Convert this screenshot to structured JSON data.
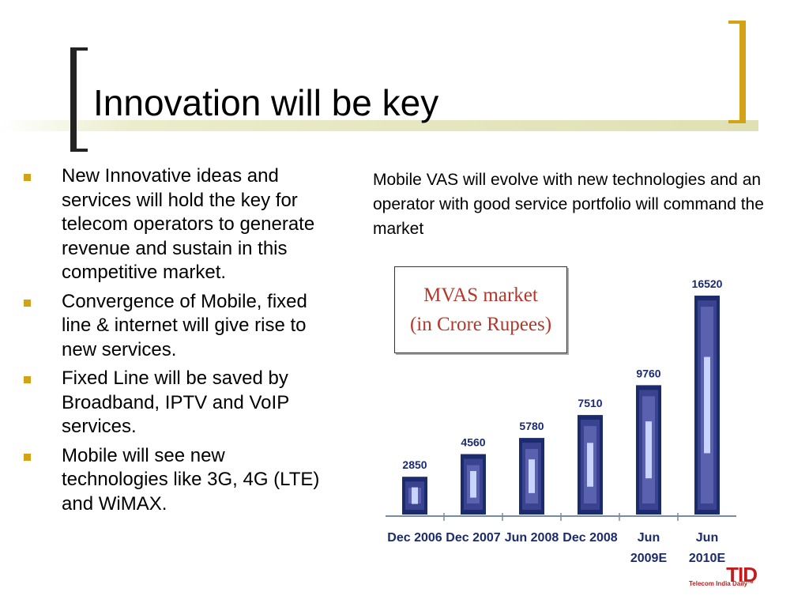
{
  "slide": {
    "title": "Innovation will be key",
    "bullets": [
      "New Innovative ideas and services will hold the key for telecom operators to generate revenue and sustain in this competitive market.",
      "Convergence of Mobile, fixed line & internet will give rise to new services.",
      "Fixed Line will be saved by Broadband, IPTV and VoIP services.",
      "Mobile will see new technologies like 3G, 4G (LTE) and WiMAX."
    ],
    "caption": "Mobile VAS will evolve with new technologies and an operator with good service portfolio will command the market",
    "logo": {
      "letters": "TID",
      "tagline": "Telecom India Daily™"
    }
  },
  "colors": {
    "accent_gold": "#d4a216",
    "bar_dark": "#1c2a6e",
    "bar_mid": "#5a62b0",
    "bar_light": "#c9d4ff",
    "chart_title": "#b5362a"
  },
  "chart_data": {
    "type": "bar",
    "title": "MVAS market",
    "subtitle": "(in Crore Rupees)",
    "categories": [
      "Dec 2006",
      "Dec 2007",
      "Jun 2008",
      "Dec 2008",
      "Jun 2009E",
      "Jun 2010E"
    ],
    "values": [
      2850,
      4560,
      5780,
      7510,
      9760,
      16520
    ],
    "data_labels": [
      "2850",
      "4560",
      "5780",
      "7510",
      "9760",
      "16520"
    ],
    "ylim": [
      0,
      17000
    ],
    "grid": false,
    "legend": "none"
  }
}
